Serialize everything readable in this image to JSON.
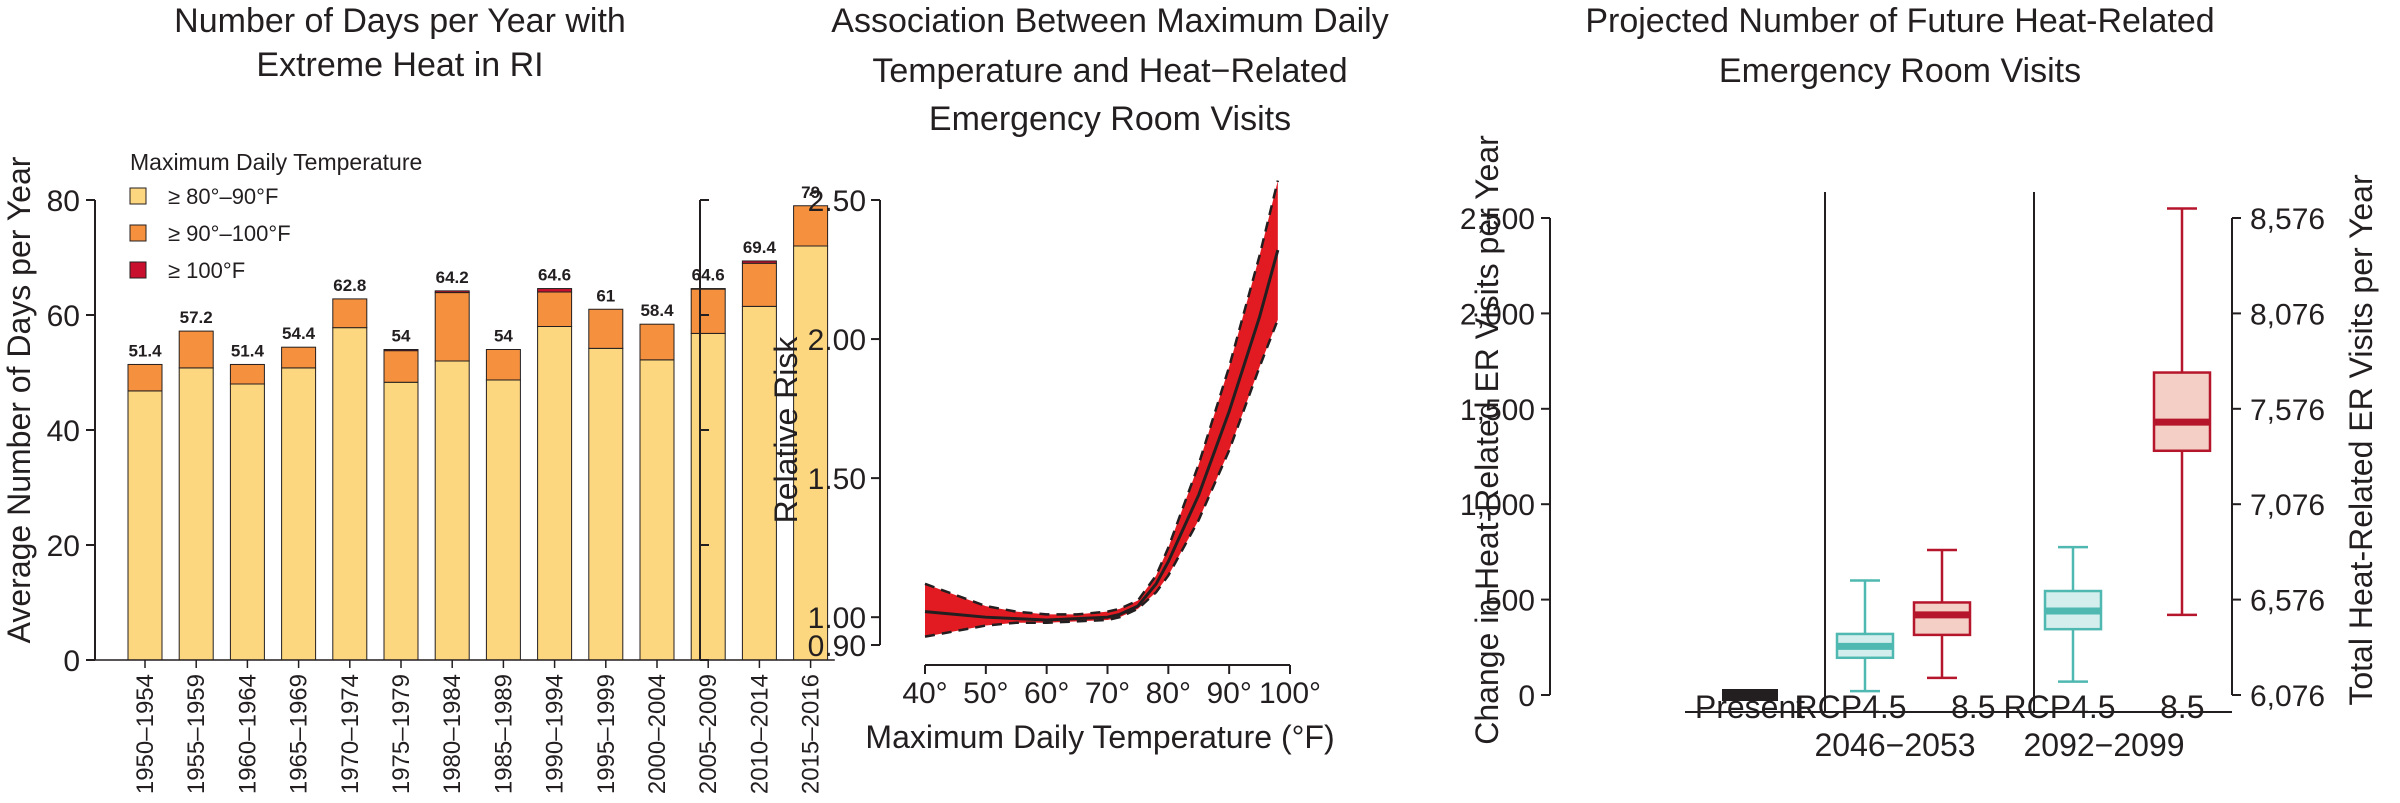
{
  "chart_data": [
    {
      "type": "bar",
      "title": "Number of Days per Year with Extreme Heat in RI",
      "title_lines": [
        "Number of Days per Year with",
        "Extreme Heat in RI"
      ],
      "ylabel": "Average Number of Days per Year",
      "ylim": [
        0,
        80
      ],
      "yticks": [
        "0",
        "20",
        "40",
        "60",
        "80"
      ],
      "legend_title": "Maximum Daily Temperature",
      "legend_placement": "top-left",
      "categories": [
        "1950–1954",
        "1955–1959",
        "1960–1964",
        "1965–1969",
        "1970–1974",
        "1975–1979",
        "1980–1984",
        "1985–1989",
        "1990–1994",
        "1995–1999",
        "2000–2004",
        "2005–2009",
        "2010–2014",
        "2015–2016"
      ],
      "totals_labels": [
        "51.4",
        "57.2",
        "51.4",
        "54.4",
        "62.8",
        "54",
        "64.2",
        "54",
        "64.6",
        "61",
        "58.4",
        "64.6",
        "69.4",
        "79"
      ],
      "series": [
        {
          "name": "≥ 80°–90°F",
          "color": "#fcd77f",
          "values": [
            46.8,
            50.8,
            48.0,
            50.8,
            57.8,
            48.3,
            52.0,
            48.7,
            58.0,
            54.2,
            52.2,
            56.8,
            61.5,
            72.0
          ]
        },
        {
          "name": "≥ 90°–100°F",
          "color": "#f5913e",
          "values": [
            4.6,
            6.4,
            3.4,
            3.6,
            5.0,
            5.5,
            11.9,
            5.3,
            6.0,
            6.8,
            6.2,
            7.7,
            7.5,
            7.0
          ]
        },
        {
          "name": "≥ 100°F",
          "color": "#c8102e",
          "values": [
            0,
            0,
            0,
            0,
            0,
            0.2,
            0.3,
            0,
            0.6,
            0,
            0,
            0.1,
            0.4,
            0
          ]
        }
      ]
    },
    {
      "type": "line",
      "title": "Association Between Maximum Daily Temperature and Heat-Related Emergency Room Visits",
      "title_lines": [
        "Association Between Maximum Daily",
        "Temperature and Heat−Related",
        "Emergency Room Visits"
      ],
      "xlabel": "Maximum Daily Temperature (°F)",
      "ylabel": "Relative Risk",
      "xlim": [
        40,
        100
      ],
      "ylim": [
        0.9,
        2.5
      ],
      "xticks": [
        "40°",
        "50°",
        "60°",
        "70°",
        "80°",
        "90°",
        "100°"
      ],
      "yticks": [
        "0.90",
        "1.00",
        "1.50",
        "2.00",
        "2.50"
      ],
      "fill_color": "#e21b23",
      "x": [
        40,
        45,
        50,
        55,
        60,
        65,
        70,
        72,
        75,
        78,
        80,
        85,
        90,
        95,
        98
      ],
      "estimate": [
        1.02,
        1.01,
        1.0,
        0.995,
        0.99,
        0.995,
        1.0,
        1.01,
        1.04,
        1.12,
        1.2,
        1.44,
        1.74,
        2.08,
        2.32
      ],
      "lower": [
        0.93,
        0.95,
        0.97,
        0.98,
        0.98,
        0.985,
        0.99,
        1.0,
        1.03,
        1.09,
        1.15,
        1.35,
        1.6,
        1.9,
        2.07
      ],
      "upper": [
        1.12,
        1.08,
        1.04,
        1.02,
        1.01,
        1.01,
        1.02,
        1.03,
        1.06,
        1.15,
        1.25,
        1.55,
        1.9,
        2.3,
        2.57
      ]
    },
    {
      "type": "box",
      "title": "Projected Number of Future Heat-Related Emergency Room Visits",
      "title_lines": [
        "Projected Number of Future Heat-Related",
        "Emergency Room Visits"
      ],
      "ylabel": "Change in Heat-Related ER Visits per Year",
      "ylabel_right": "Total Heat-Related ER Visits per Year",
      "ylim": [
        0,
        2500
      ],
      "yticks": [
        "0",
        "500",
        "1,000",
        "1,500",
        "2,000",
        "2,500"
      ],
      "yticks_right": [
        "6,076",
        "6,576",
        "7,076",
        "7,576",
        "8,076",
        "8,576"
      ],
      "group_labels": [
        {
          "top": "Present",
          "bottom": ""
        },
        {
          "top": "RCP4.5     8.5",
          "bottom": "2046−2053"
        },
        {
          "top": "RCP4.5     8.5",
          "bottom": "2092−2099"
        }
      ],
      "present_value": 0,
      "present_color": "#231f20",
      "boxes": [
        {
          "name": "RCP4.5 2046−2053",
          "color": "#4fb8b0",
          "fill": "#d3eeec",
          "min": 20,
          "q1": 195,
          "median": 255,
          "q3": 320,
          "max": 600
        },
        {
          "name": "RCP8.5 2046−2053",
          "color": "#b5162b",
          "fill": "#f3cfc6",
          "min": 90,
          "q1": 315,
          "median": 420,
          "q3": 485,
          "max": 760
        },
        {
          "name": "RCP4.5 2092−2099",
          "color": "#4fb8b0",
          "fill": "#d3eeec",
          "min": 70,
          "q1": 345,
          "median": 440,
          "q3": 545,
          "max": 775
        },
        {
          "name": "RCP8.5 2092−2099",
          "color": "#b5162b",
          "fill": "#f3cfc6",
          "min": 420,
          "q1": 1280,
          "median": 1430,
          "q3": 1690,
          "max": 2550
        }
      ]
    }
  ]
}
